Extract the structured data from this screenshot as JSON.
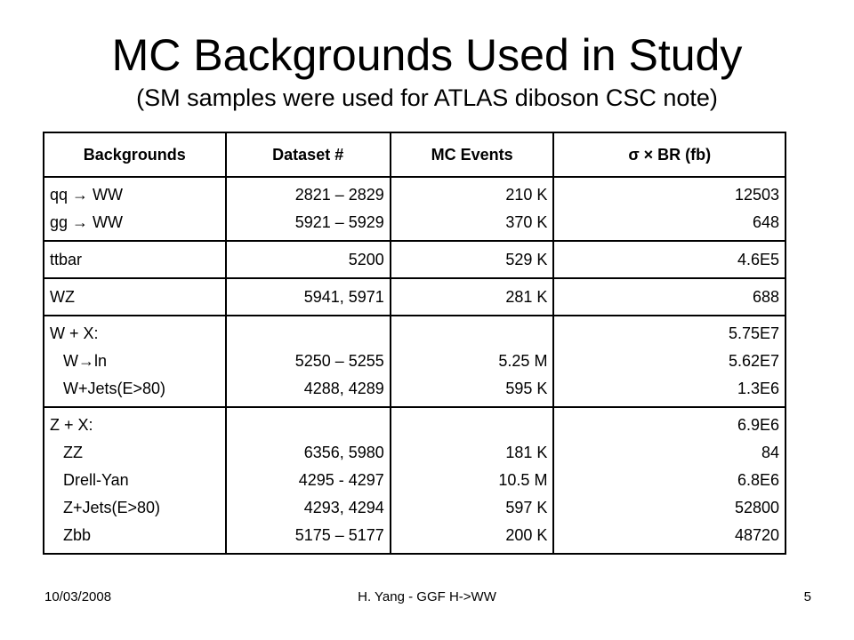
{
  "title": "MC Backgrounds Used in Study",
  "subtitle": "(SM samples were used for ATLAS diboson CSC note)",
  "table": {
    "headers": [
      "Backgrounds",
      "Dataset #",
      "MC Events",
      "σ × BR (fb)"
    ],
    "rows": [
      {
        "background": [
          "qq → WW",
          "gg → WW"
        ],
        "dataset": [
          "2821 – 2829",
          "5921 – 5929"
        ],
        "events": [
          "210 K",
          "370 K"
        ],
        "xsec": [
          "12503",
          "648"
        ]
      },
      {
        "background": [
          "ttbar"
        ],
        "dataset": [
          "5200"
        ],
        "events": [
          "529 K"
        ],
        "xsec": [
          "4.6E5"
        ]
      },
      {
        "background": [
          "WZ"
        ],
        "dataset": [
          "5941, 5971"
        ],
        "events": [
          "281 K"
        ],
        "xsec": [
          "688"
        ]
      },
      {
        "background": [
          "W + X:",
          "   W→ln",
          "   W+Jets(E>80)"
        ],
        "dataset": [
          "",
          "5250 – 5255",
          "4288, 4289"
        ],
        "events": [
          "",
          "5.25 M",
          "595 K"
        ],
        "xsec": [
          "5.75E7",
          "5.62E7",
          "1.3E6"
        ]
      },
      {
        "background": [
          "Z + X:",
          "   ZZ",
          "   Drell-Yan",
          "   Z+Jets(E>80)",
          "   Zbb"
        ],
        "dataset": [
          "",
          "6356, 5980",
          "4295 - 4297",
          "4293, 4294",
          "5175 – 5177"
        ],
        "events": [
          "",
          "181 K",
          "10.5 M",
          "597 K",
          "200 K"
        ],
        "xsec": [
          "6.9E6",
          "84",
          "6.8E6",
          "52800",
          "48720"
        ]
      }
    ]
  },
  "footer": {
    "date": "10/03/2008",
    "center": "H. Yang - GGF H->WW",
    "page": "5"
  }
}
